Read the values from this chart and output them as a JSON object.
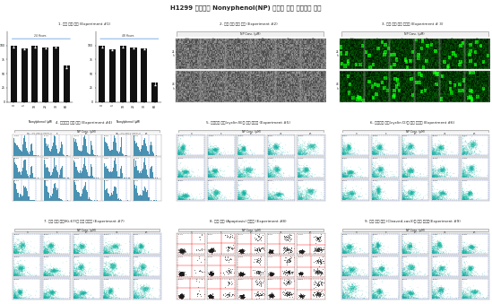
{
  "title": "H1299 세포에서 Nonyphenol(NP) 노출에 따른 세포독성 평가",
  "panel_titles": [
    "1. 세포 성장 확인 (Experiment #1)",
    "2. 세포 모형 변화 관찰 (Experiment #2)",
    "3. 세포 사멸 정도 정량화 (Experiment # 3)",
    "4. 세포주기 분포 확인 (Experiment #4)",
    "5. 세포주기 마커(cyclin B)의 발현 정량화 (Experiment #5)",
    "6. 세포주기 마커(cyclin D)의 발현 정량화 (Experiment #6)",
    "7. 세포 분열 마커(Ki-67)의 발현 정량화 (Experiment #7)",
    "8. 세포 자살 (Apoptosis) 정량화 (Experiment #8)",
    "9. 세포 자살 마커 (Cleaved-cas3)의 발현 정량화(Experiment #9)"
  ],
  "bar_values_24h": [
    100,
    95,
    100,
    97,
    98,
    65
  ],
  "bar_values_48h": [
    100,
    93,
    100,
    96,
    95,
    35
  ],
  "bar_categories": [
    "0",
    "5",
    "10",
    "20",
    "30",
    "60"
  ],
  "np_conc_labels": [
    "N.C",
    "0",
    "5",
    "10",
    "30",
    "60"
  ],
  "np_conc_5": [
    "0",
    "5",
    "10",
    "30",
    "60"
  ],
  "time_points": [
    "24 Hours",
    "48 Hours"
  ],
  "background_color": "#ffffff",
  "bar_color": "#111111",
  "header_bg": "#f0f0f0",
  "flow_color": "#2a7fa5",
  "scatter_color_r": 0.1,
  "scatter_color_g": 0.6,
  "scatter_color_b": 0.55,
  "spine_color": "#888888",
  "text_color": "#222222"
}
